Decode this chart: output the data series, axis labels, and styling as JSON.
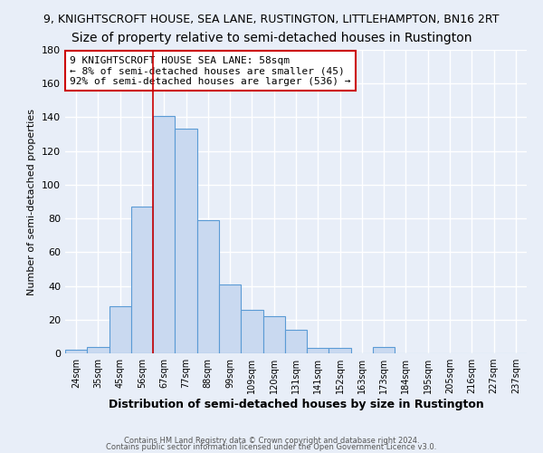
{
  "title": "9, KNIGHTSCROFT HOUSE, SEA LANE, RUSTINGTON, LITTLEHAMPTON, BN16 2RT",
  "subtitle": "Size of property relative to semi-detached houses in Rustington",
  "xlabel": "Distribution of semi-detached houses by size in Rustington",
  "ylabel": "Number of semi-detached properties",
  "bin_labels": [
    "24sqm",
    "35sqm",
    "45sqm",
    "56sqm",
    "67sqm",
    "77sqm",
    "88sqm",
    "99sqm",
    "109sqm",
    "120sqm",
    "131sqm",
    "141sqm",
    "152sqm",
    "163sqm",
    "173sqm",
    "184sqm",
    "195sqm",
    "205sqm",
    "216sqm",
    "227sqm",
    "237sqm"
  ],
  "bar_heights": [
    2,
    4,
    28,
    87,
    141,
    133,
    79,
    41,
    26,
    22,
    14,
    3,
    3,
    0,
    4,
    0,
    0,
    0,
    0,
    0,
    0
  ],
  "bar_color": "#c9d9f0",
  "bar_edge_color": "#5b9bd5",
  "vline_x": 3.5,
  "vline_color": "#cc0000",
  "annotation_title": "9 KNIGHTSCROFT HOUSE SEA LANE: 58sqm",
  "annotation_line1": "← 8% of semi-detached houses are smaller (45)",
  "annotation_line2": "92% of semi-detached houses are larger (536) →",
  "annotation_box_color": "white",
  "annotation_box_edge_color": "#cc0000",
  "ylim": [
    0,
    180
  ],
  "yticks": [
    0,
    20,
    40,
    60,
    80,
    100,
    120,
    140,
    160,
    180
  ],
  "footer1": "Contains HM Land Registry data © Crown copyright and database right 2024.",
  "footer2": "Contains public sector information licensed under the Open Government Licence v3.0.",
  "background_color": "#e8eef8",
  "plot_background_color": "#e8eef8",
  "grid_color": "white",
  "title_fontsize": 9,
  "subtitle_fontsize": 10
}
